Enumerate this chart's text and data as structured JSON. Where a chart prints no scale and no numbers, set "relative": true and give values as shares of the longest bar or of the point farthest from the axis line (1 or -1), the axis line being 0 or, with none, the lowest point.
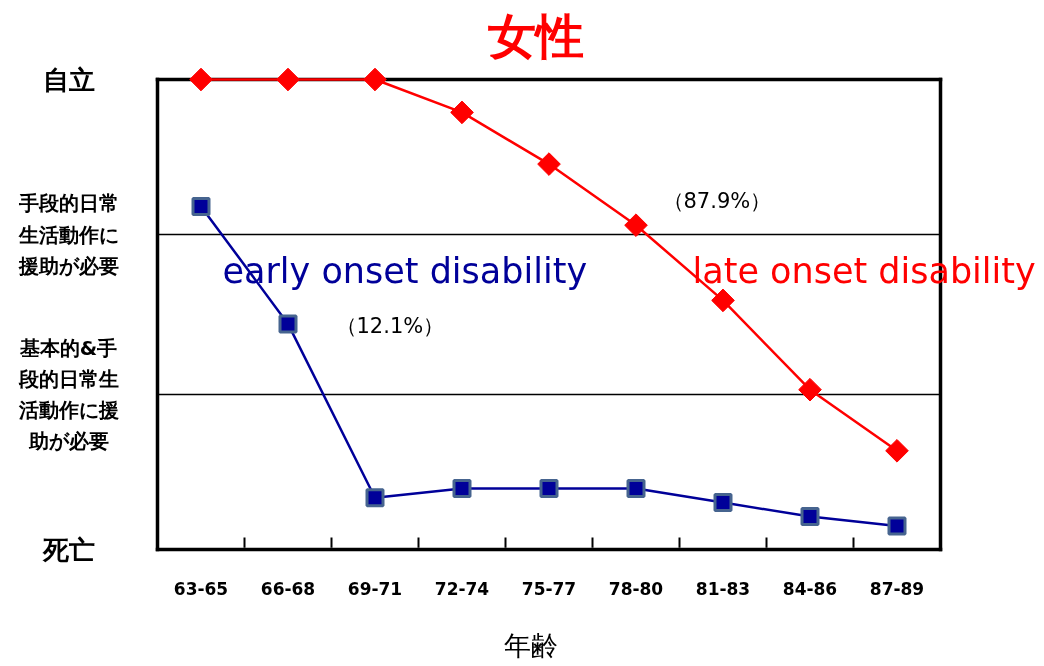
{
  "chart_data": {
    "type": "line",
    "title": "女性",
    "xlabel": "年齢",
    "relative": true,
    "categories": [
      "63-65",
      "66-68",
      "69-71",
      "72-74",
      "75-77",
      "78-80",
      "81-83",
      "84-86",
      "87-89"
    ],
    "ref_lines": [
      {
        "axis": "y",
        "value": 1,
        "label": "自立"
      },
      {
        "axis": "y",
        "value": 0.67,
        "label": "手段的日常生活動作に援助が必要"
      },
      {
        "axis": "y",
        "value": 0.33,
        "label": "基本的&手段的日常生活動作に援助が必要"
      }
    ],
    "series": [
      {
        "name": "early onset disability",
        "color": "#000099",
        "marker": "square",
        "values": [
          0.73,
          0.48,
          0.11,
          0.13,
          0.13,
          0.13,
          0.1,
          0.07,
          0.05
        ]
      },
      {
        "name": "late onset disability",
        "color": "#ff0000",
        "marker": "diamond",
        "values": [
          1,
          1,
          1,
          0.93,
          0.82,
          0.69,
          0.53,
          0.34,
          0.21
        ]
      }
    ],
    "annotations": [
      "（87.9%）",
      "（12.1%）",
      "死亡"
    ]
  }
}
